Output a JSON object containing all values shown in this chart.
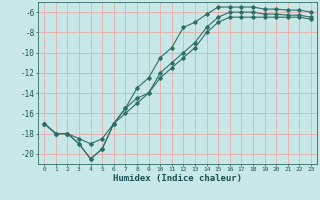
{
  "xlabel": "Humidex (Indice chaleur)",
  "bg_color": "#c8e8e8",
  "grid_color": "#e8aaaa",
  "line_color": "#2e6e64",
  "xlim": [
    -0.5,
    23.5
  ],
  "ylim": [
    -21.0,
    -5.0
  ],
  "x_ticks": [
    0,
    1,
    2,
    3,
    4,
    5,
    6,
    7,
    8,
    9,
    10,
    11,
    12,
    13,
    14,
    15,
    16,
    17,
    18,
    19,
    20,
    21,
    22,
    23
  ],
  "y_ticks": [
    -20,
    -18,
    -16,
    -14,
    -12,
    -10,
    -8,
    -6
  ],
  "line1_x": [
    0,
    1,
    2,
    3,
    4,
    5,
    6,
    7,
    8,
    9,
    10,
    11,
    12,
    13,
    14,
    15,
    16,
    17,
    18,
    19,
    20,
    21,
    22,
    23
  ],
  "line1_y": [
    -17.0,
    -18.0,
    -18.0,
    -19.0,
    -20.5,
    -19.5,
    -17.0,
    -15.5,
    -13.5,
    -12.5,
    -10.5,
    -9.5,
    -7.5,
    -7.0,
    -6.2,
    -5.5,
    -5.5,
    -5.5,
    -5.5,
    -5.7,
    -5.7,
    -5.8,
    -5.8,
    -6.0
  ],
  "line2_x": [
    0,
    1,
    2,
    3,
    4,
    5,
    6,
    7,
    8,
    9,
    10,
    11,
    12,
    13,
    14,
    15,
    16,
    17,
    18,
    19,
    20,
    21,
    22,
    23
  ],
  "line2_y": [
    -17.0,
    -18.0,
    -18.0,
    -19.0,
    -20.5,
    -19.5,
    -17.0,
    -15.5,
    -14.5,
    -14.0,
    -12.0,
    -11.0,
    -10.0,
    -9.0,
    -7.5,
    -6.5,
    -6.0,
    -6.0,
    -6.0,
    -6.2,
    -6.2,
    -6.3,
    -6.3,
    -6.5
  ],
  "line3_x": [
    0,
    1,
    2,
    3,
    4,
    5,
    6,
    7,
    8,
    9,
    10,
    11,
    12,
    13,
    14,
    15,
    16,
    17,
    18,
    19,
    20,
    21,
    22,
    23
  ],
  "line3_y": [
    -17.0,
    -18.0,
    -18.0,
    -18.5,
    -19.0,
    -18.5,
    -17.0,
    -16.0,
    -15.0,
    -14.0,
    -12.5,
    -11.5,
    -10.5,
    -9.5,
    -8.0,
    -7.0,
    -6.5,
    -6.5,
    -6.5,
    -6.5,
    -6.5,
    -6.5,
    -6.5,
    -6.7
  ]
}
